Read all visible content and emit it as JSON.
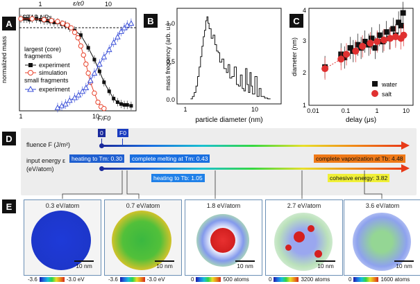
{
  "panels": {
    "a": "A",
    "b": "B",
    "c": "C",
    "d": "D",
    "e": "E"
  },
  "chart_data": [
    {
      "type": "line",
      "title": "CTAB NPs",
      "xlabel": "F/F0",
      "x2label": "ε/ε0",
      "ylabel": "normalized mass",
      "x_scale": "log",
      "xlim": [
        1,
        30
      ],
      "ylim": [
        0,
        1.1
      ],
      "xticks": [
        "1",
        "10"
      ],
      "x2ticks": [
        "1",
        "10"
      ],
      "legend_title_1": "largest (core)",
      "legend_title_1b": "fragments",
      "legend_title_2": "small fragments",
      "series": [
        {
          "name": "experiment",
          "group": "largest (core) fragments",
          "color": "#111111",
          "x": [
            1.0,
            1.1,
            1.2,
            1.3,
            1.4,
            1.6,
            1.8,
            2.0,
            2.2,
            2.4,
            2.7,
            3.0,
            3.4,
            3.8,
            4.3,
            5.0,
            6.0,
            7.5,
            9.0,
            10.5,
            12,
            14,
            16,
            18,
            20,
            22,
            24,
            27
          ],
          "y": [
            1.0,
            1.0,
            1.0,
            0.99,
            1.0,
            1.0,
            0.99,
            0.98,
            0.98,
            0.97,
            0.96,
            0.96,
            0.94,
            0.93,
            0.9,
            0.87,
            0.82,
            0.68,
            0.55,
            0.42,
            0.3,
            0.2,
            0.12,
            0.08,
            0.06,
            0.05,
            0.05,
            0.04
          ]
        },
        {
          "name": "simulation",
          "group": "largest (core) fragments",
          "color": "#e8412a",
          "x": [
            1.0,
            1.4,
            2.0,
            2.5,
            3.0,
            3.5,
            4.0,
            4.5,
            5.0,
            5.5,
            6.0,
            6.5,
            7.0,
            7.5,
            8.0,
            9.0,
            10.0,
            11.0,
            12.0
          ],
          "y": [
            1.0,
            1.0,
            0.99,
            0.98,
            0.97,
            0.95,
            0.93,
            0.9,
            0.85,
            0.79,
            0.7,
            0.6,
            0.5,
            0.4,
            0.3,
            0.18,
            0.08,
            0.03,
            0.01
          ]
        },
        {
          "name": "experiment",
          "group": "small fragments",
          "color": "#3a4fd8",
          "x": [
            3.0,
            3.4,
            3.8,
            4.3,
            5.0,
            5.6,
            6.3,
            7.0,
            8.0,
            9.0,
            10.5,
            12,
            14,
            16,
            18,
            20,
            22,
            24,
            27
          ],
          "y": [
            0.02,
            0.04,
            0.06,
            0.1,
            0.13,
            0.16,
            0.2,
            0.24,
            0.32,
            0.4,
            0.5,
            0.58,
            0.66,
            0.74,
            0.8,
            0.86,
            0.9,
            0.93,
            0.95
          ]
        }
      ]
    },
    {
      "type": "line",
      "title": "",
      "xlabel": "particle diameter (nm)",
      "ylabel": "mass frequency (arb. u.)",
      "x_scale": "log",
      "xlim": [
        1,
        30
      ],
      "ylim": [
        0,
        1.1
      ],
      "xticks": [
        "1",
        "10"
      ],
      "yticks": [
        "0.0",
        "0.5",
        "1.0"
      ],
      "series": [
        {
          "name": "mass frequency",
          "color": "#111111",
          "x": [
            1.5,
            1.6,
            1.7,
            1.8,
            1.9,
            2.0,
            2.1,
            2.2,
            2.3,
            2.4,
            2.5,
            2.6,
            2.7,
            2.8,
            3.0,
            3.2,
            3.4,
            3.6,
            3.8,
            4.0,
            4.3,
            4.6,
            5.0,
            5.3,
            5.6,
            6.0,
            6.5,
            7.0,
            7.5,
            8.0,
            8.5,
            9.0,
            9.5,
            10,
            10.5,
            11,
            11.5,
            12,
            13,
            14,
            15,
            16,
            18,
            20,
            22
          ],
          "y": [
            0.02,
            0.05,
            0.1,
            0.18,
            0.3,
            0.42,
            0.55,
            0.68,
            0.8,
            0.88,
            1.0,
            1.05,
            0.97,
            0.9,
            0.78,
            0.82,
            0.7,
            0.62,
            0.6,
            0.48,
            0.52,
            0.4,
            0.35,
            0.45,
            0.28,
            0.3,
            0.42,
            0.2,
            0.18,
            0.32,
            0.15,
            0.12,
            0.4,
            0.2,
            0.1,
            0.35,
            0.18,
            0.08,
            0.3,
            0.05,
            0.15,
            0.05,
            0.03,
            0.02,
            0.02
          ]
        }
      ]
    },
    {
      "type": "scatter",
      "title": "",
      "xlabel": "delay (μs)",
      "ylabel": "diameter (nm)",
      "x_scale": "log",
      "xlim": [
        0.01,
        20
      ],
      "ylim": [
        1,
        4
      ],
      "xticks": [
        "0.01",
        "0.1",
        "1",
        "10"
      ],
      "yticks": [
        "1",
        "2",
        "3",
        "4"
      ],
      "series": [
        {
          "name": "water",
          "color": "#111111",
          "marker": "square",
          "x": [
            0.03,
            0.1,
            0.13,
            0.2,
            0.25,
            0.35,
            0.45,
            0.6,
            0.8,
            1.0,
            1.3,
            1.8,
            2.3,
            3.0,
            3.8,
            5.0,
            6.0,
            7.5,
            9.0,
            10.5
          ],
          "y": [
            2.2,
            2.6,
            2.5,
            2.8,
            2.7,
            2.9,
            2.8,
            3.0,
            2.9,
            3.1,
            2.8,
            3.2,
            3.0,
            3.3,
            3.1,
            3.4,
            3.2,
            3.6,
            3.5,
            3.9
          ]
        },
        {
          "name": "salt",
          "color": "#e03030",
          "marker": "circle",
          "x": [
            0.03,
            0.1,
            0.15,
            0.3,
            0.5,
            0.9,
            1.5,
            2.5,
            4.0,
            6.0,
            9.0,
            11.0
          ],
          "y": [
            2.15,
            2.45,
            2.6,
            2.7,
            2.85,
            2.95,
            3.0,
            3.05,
            3.1,
            3.15,
            3.1,
            3.2
          ]
        }
      ]
    }
  ],
  "scale": {
    "fluence_label": "fluence F (J/m²)",
    "energy_label_1": "input energy ε",
    "energy_label_2": "(eV/atom)",
    "zero_marker": "0",
    "f0_marker": "F0",
    "heating_tm": "heating to Tm: 0.30",
    "melting": "complete melting at Tm: 0.43",
    "heating_tb": "heating to Tb: 1.05",
    "vaporization": "complete vaporization at Tb: 4.48",
    "cohesive": "cohesive energy: 3.82",
    "color_tm": "#1f5fd0",
    "color_vap": "#f07a18",
    "color_coh": "#f0f038"
  },
  "md": [
    {
      "label": "0.3 eV/atom",
      "scale": "10 nm",
      "cb_min": "-3.6",
      "cb_max": "-3.0 eV"
    },
    {
      "label": "0.7 eV/atom",
      "scale": "10 nm",
      "cb_min": "-3.6",
      "cb_max": "-3.0 eV"
    },
    {
      "label": "1.8 eV/atom",
      "scale": "10 nm",
      "cb_min": "0",
      "cb_max": "500 atoms"
    },
    {
      "label": "2.7 eV/atom",
      "scale": "10 nm",
      "cb_min": "0",
      "cb_max": "3200 atoms"
    },
    {
      "label": "3.6 eV/atom",
      "scale": "10 nm",
      "cb_min": "0",
      "cb_max": "1600 atoms"
    }
  ]
}
